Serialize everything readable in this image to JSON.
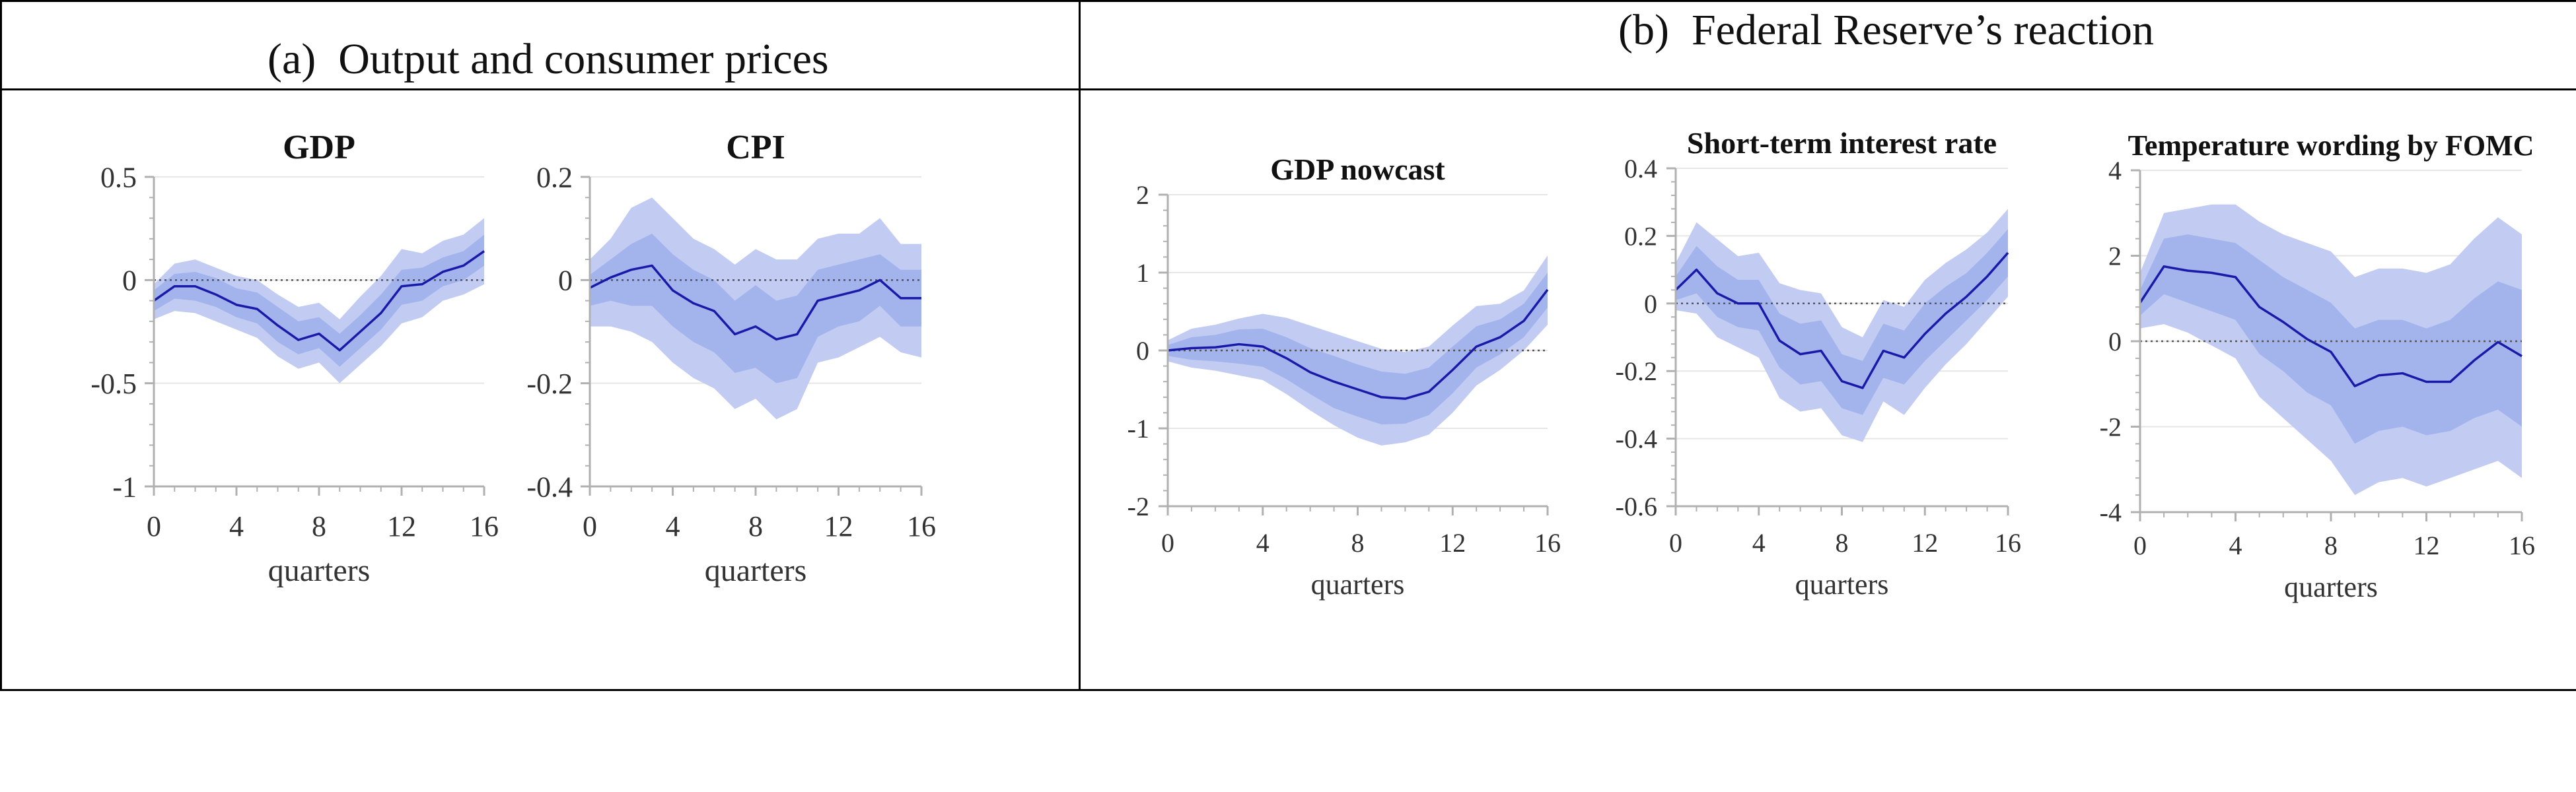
{
  "panels": [
    {
      "label": "(a)",
      "title": "Output and consumer prices"
    },
    {
      "label": "(b)",
      "title": "Federal Reserve’s reaction"
    }
  ],
  "colors": {
    "band_outer": "#c2ccf2",
    "band_inner": "#a3b3ec",
    "line": "#1a1aa8",
    "zero_line": "#555555",
    "gridline": "#e6e6e6",
    "axis": "#b0b0b0",
    "text": "#333333"
  },
  "chart_data": [
    {
      "type": "area",
      "title": "GDP",
      "xlabel": "quarters",
      "ylabel": "",
      "xlim": [
        0,
        16
      ],
      "ylim": [
        -1,
        0.5
      ],
      "xticks": [
        0,
        4,
        8,
        12,
        16
      ],
      "yticks": [
        -1,
        -0.5,
        0,
        0.5
      ],
      "ytick_labels": [
        "-1",
        "-0.5",
        "0",
        "0.5"
      ],
      "zero_line": true,
      "x": [
        0,
        1,
        2,
        3,
        4,
        5,
        6,
        7,
        8,
        9,
        10,
        11,
        12,
        13,
        14,
        15,
        16
      ],
      "series": [
        {
          "role": "median",
          "values": [
            -0.1,
            -0.03,
            -0.03,
            -0.07,
            -0.12,
            -0.14,
            -0.22,
            -0.29,
            -0.26,
            -0.34,
            -0.25,
            -0.16,
            -0.03,
            -0.02,
            0.04,
            0.07,
            0.14
          ]
        },
        {
          "role": "band_outer_upper",
          "values": [
            -0.02,
            0.08,
            0.1,
            0.06,
            0.02,
            0.0,
            -0.07,
            -0.13,
            -0.11,
            -0.19,
            -0.08,
            0.02,
            0.15,
            0.13,
            0.19,
            0.22,
            0.3
          ]
        },
        {
          "role": "band_outer_lower",
          "values": [
            -0.19,
            -0.15,
            -0.16,
            -0.2,
            -0.24,
            -0.28,
            -0.37,
            -0.43,
            -0.4,
            -0.5,
            -0.41,
            -0.32,
            -0.21,
            -0.18,
            -0.1,
            -0.07,
            -0.02
          ]
        },
        {
          "role": "band_inner_upper",
          "values": [
            -0.05,
            0.03,
            0.04,
            0.01,
            -0.04,
            -0.06,
            -0.13,
            -0.2,
            -0.18,
            -0.26,
            -0.17,
            -0.07,
            0.05,
            0.06,
            0.11,
            0.14,
            0.22
          ]
        },
        {
          "role": "band_inner_lower",
          "values": [
            -0.15,
            -0.09,
            -0.1,
            -0.13,
            -0.18,
            -0.21,
            -0.3,
            -0.36,
            -0.33,
            -0.42,
            -0.33,
            -0.24,
            -0.12,
            -0.1,
            -0.03,
            0.0,
            0.07
          ]
        }
      ]
    },
    {
      "type": "area",
      "title": "CPI",
      "xlabel": "quarters",
      "ylabel": "",
      "xlim": [
        0,
        16
      ],
      "ylim": [
        -0.4,
        0.2
      ],
      "xticks": [
        0,
        4,
        8,
        12,
        16
      ],
      "yticks": [
        -0.4,
        -0.2,
        0,
        0.2
      ],
      "ytick_labels": [
        "-0.4",
        "-0.2",
        "0",
        "0.2"
      ],
      "zero_line": true,
      "x": [
        0,
        1,
        2,
        3,
        4,
        5,
        6,
        7,
        8,
        9,
        10,
        11,
        12,
        13,
        14,
        15,
        16
      ],
      "series": [
        {
          "role": "median",
          "values": [
            -0.015,
            0.005,
            0.02,
            0.028,
            -0.02,
            -0.045,
            -0.06,
            -0.105,
            -0.09,
            -0.115,
            -0.105,
            -0.04,
            -0.03,
            -0.02,
            0.0,
            -0.035,
            -0.035
          ]
        },
        {
          "role": "band_outer_upper",
          "values": [
            0.04,
            0.08,
            0.14,
            0.16,
            0.12,
            0.08,
            0.06,
            0.03,
            0.06,
            0.04,
            0.04,
            0.08,
            0.09,
            0.09,
            0.12,
            0.07,
            0.07
          ]
        },
        {
          "role": "band_outer_lower",
          "values": [
            -0.09,
            -0.09,
            -0.1,
            -0.12,
            -0.16,
            -0.19,
            -0.21,
            -0.25,
            -0.23,
            -0.27,
            -0.25,
            -0.16,
            -0.15,
            -0.13,
            -0.11,
            -0.14,
            -0.15
          ]
        },
        {
          "role": "band_inner_upper",
          "values": [
            0.01,
            0.04,
            0.07,
            0.09,
            0.05,
            0.02,
            0.0,
            -0.04,
            -0.01,
            -0.04,
            -0.03,
            0.02,
            0.03,
            0.04,
            0.05,
            0.02,
            0.02
          ]
        },
        {
          "role": "band_inner_lower",
          "values": [
            -0.05,
            -0.04,
            -0.05,
            -0.05,
            -0.09,
            -0.12,
            -0.14,
            -0.18,
            -0.17,
            -0.2,
            -0.19,
            -0.11,
            -0.09,
            -0.08,
            -0.05,
            -0.09,
            -0.09
          ]
        }
      ]
    },
    {
      "type": "area",
      "title": "GDP nowcast",
      "xlabel": "quarters",
      "ylabel": "",
      "xlim": [
        0,
        16
      ],
      "ylim": [
        -2,
        2
      ],
      "xticks": [
        0,
        4,
        8,
        12,
        16
      ],
      "yticks": [
        -2,
        -1,
        0,
        1,
        2
      ],
      "ytick_labels": [
        "-2",
        "-1",
        "0",
        "1",
        "2"
      ],
      "zero_line": true,
      "x": [
        0,
        1,
        2,
        3,
        4,
        5,
        6,
        7,
        8,
        9,
        10,
        11,
        12,
        13,
        14,
        15,
        16
      ],
      "series": [
        {
          "role": "median",
          "values": [
            0.0,
            0.03,
            0.04,
            0.08,
            0.05,
            -0.1,
            -0.28,
            -0.4,
            -0.5,
            -0.6,
            -0.62,
            -0.53,
            -0.25,
            0.05,
            0.17,
            0.38,
            0.78
          ]
        },
        {
          "role": "band_outer_upper",
          "values": [
            0.13,
            0.28,
            0.33,
            0.41,
            0.47,
            0.42,
            0.32,
            0.22,
            0.12,
            0.02,
            -0.02,
            0.05,
            0.32,
            0.57,
            0.6,
            0.77,
            1.22
          ]
        },
        {
          "role": "band_outer_lower",
          "values": [
            -0.14,
            -0.22,
            -0.26,
            -0.32,
            -0.38,
            -0.56,
            -0.77,
            -0.96,
            -1.12,
            -1.22,
            -1.18,
            -1.08,
            -0.8,
            -0.45,
            -0.25,
            0.0,
            0.33
          ]
        },
        {
          "role": "band_inner_upper",
          "values": [
            0.07,
            0.17,
            0.2,
            0.27,
            0.28,
            0.17,
            0.03,
            -0.07,
            -0.18,
            -0.27,
            -0.3,
            -0.22,
            0.05,
            0.31,
            0.4,
            0.6,
            1.0
          ]
        },
        {
          "role": "band_inner_lower",
          "values": [
            -0.07,
            -0.12,
            -0.14,
            -0.17,
            -0.21,
            -0.37,
            -0.56,
            -0.74,
            -0.85,
            -0.95,
            -0.94,
            -0.83,
            -0.55,
            -0.22,
            -0.05,
            0.17,
            0.55
          ]
        }
      ]
    },
    {
      "type": "area",
      "title": "Short-term interest rate",
      "xlabel": "quarters",
      "ylabel": "",
      "xlim": [
        0,
        16
      ],
      "ylim": [
        -0.6,
        0.4
      ],
      "xticks": [
        0,
        4,
        8,
        12,
        16
      ],
      "yticks": [
        -0.6,
        -0.4,
        -0.2,
        0,
        0.2,
        0.4
      ],
      "ytick_labels": [
        "-0.6",
        "-0.4",
        "-0.2",
        "0",
        "0.2",
        "0.4"
      ],
      "zero_line": true,
      "x": [
        0,
        1,
        2,
        3,
        4,
        5,
        6,
        7,
        8,
        9,
        10,
        11,
        12,
        13,
        14,
        15,
        16
      ],
      "series": [
        {
          "role": "median",
          "values": [
            0.04,
            0.1,
            0.03,
            0.0,
            0.0,
            -0.11,
            -0.15,
            -0.14,
            -0.23,
            -0.25,
            -0.14,
            -0.16,
            -0.09,
            -0.03,
            0.02,
            0.08,
            0.15
          ]
        },
        {
          "role": "band_outer_upper",
          "values": [
            0.12,
            0.24,
            0.19,
            0.14,
            0.15,
            0.06,
            0.04,
            0.03,
            -0.07,
            -0.1,
            0.01,
            -0.01,
            0.07,
            0.12,
            0.16,
            0.21,
            0.28
          ]
        },
        {
          "role": "band_outer_lower",
          "values": [
            -0.02,
            -0.03,
            -0.1,
            -0.13,
            -0.16,
            -0.28,
            -0.32,
            -0.31,
            -0.39,
            -0.41,
            -0.29,
            -0.33,
            -0.25,
            -0.18,
            -0.12,
            -0.05,
            0.02
          ]
        },
        {
          "role": "band_inner_upper",
          "values": [
            0.08,
            0.17,
            0.11,
            0.07,
            0.07,
            -0.03,
            -0.06,
            -0.05,
            -0.15,
            -0.17,
            -0.06,
            -0.08,
            0.0,
            0.05,
            0.09,
            0.15,
            0.22
          ]
        },
        {
          "role": "band_inner_lower",
          "values": [
            0.01,
            0.03,
            -0.04,
            -0.07,
            -0.08,
            -0.19,
            -0.24,
            -0.23,
            -0.31,
            -0.33,
            -0.22,
            -0.24,
            -0.17,
            -0.11,
            -0.05,
            0.01,
            0.08
          ]
        }
      ]
    },
    {
      "type": "area",
      "title": "Temperature wording by FOMC",
      "xlabel": "quarters",
      "ylabel": "",
      "xlim": [
        0,
        16
      ],
      "ylim": [
        -4,
        4
      ],
      "xticks": [
        0,
        4,
        8,
        12,
        16
      ],
      "yticks": [
        -4,
        -2,
        0,
        2,
        4
      ],
      "ytick_labels": [
        "-4",
        "-2",
        "0",
        "2",
        "4"
      ],
      "zero_line": true,
      "x": [
        0,
        1,
        2,
        3,
        4,
        5,
        6,
        7,
        8,
        9,
        10,
        11,
        12,
        13,
        14,
        15,
        16
      ],
      "series": [
        {
          "role": "median",
          "values": [
            0.9,
            1.75,
            1.65,
            1.6,
            1.5,
            0.8,
            0.45,
            0.05,
            -0.25,
            -1.05,
            -0.8,
            -0.75,
            -0.95,
            -0.95,
            -0.45,
            -0.02,
            -0.35
          ]
        },
        {
          "role": "band_outer_upper",
          "values": [
            1.6,
            3.0,
            3.1,
            3.2,
            3.2,
            2.8,
            2.5,
            2.3,
            2.1,
            1.5,
            1.7,
            1.7,
            1.6,
            1.8,
            2.4,
            2.9,
            2.5
          ]
        },
        {
          "role": "band_outer_lower",
          "values": [
            0.3,
            0.4,
            0.2,
            -0.1,
            -0.4,
            -1.3,
            -1.8,
            -2.3,
            -2.8,
            -3.6,
            -3.3,
            -3.2,
            -3.4,
            -3.2,
            -3.0,
            -2.8,
            -3.2
          ]
        },
        {
          "role": "band_inner_upper",
          "values": [
            1.2,
            2.4,
            2.5,
            2.4,
            2.3,
            1.9,
            1.5,
            1.2,
            0.9,
            0.3,
            0.5,
            0.5,
            0.3,
            0.5,
            1.0,
            1.4,
            1.2
          ]
        },
        {
          "role": "band_inner_lower",
          "values": [
            0.6,
            1.1,
            0.9,
            0.7,
            0.5,
            -0.3,
            -0.7,
            -1.2,
            -1.5,
            -2.4,
            -2.1,
            -2.0,
            -2.2,
            -2.1,
            -1.8,
            -1.6,
            -2.0
          ]
        }
      ]
    }
  ]
}
